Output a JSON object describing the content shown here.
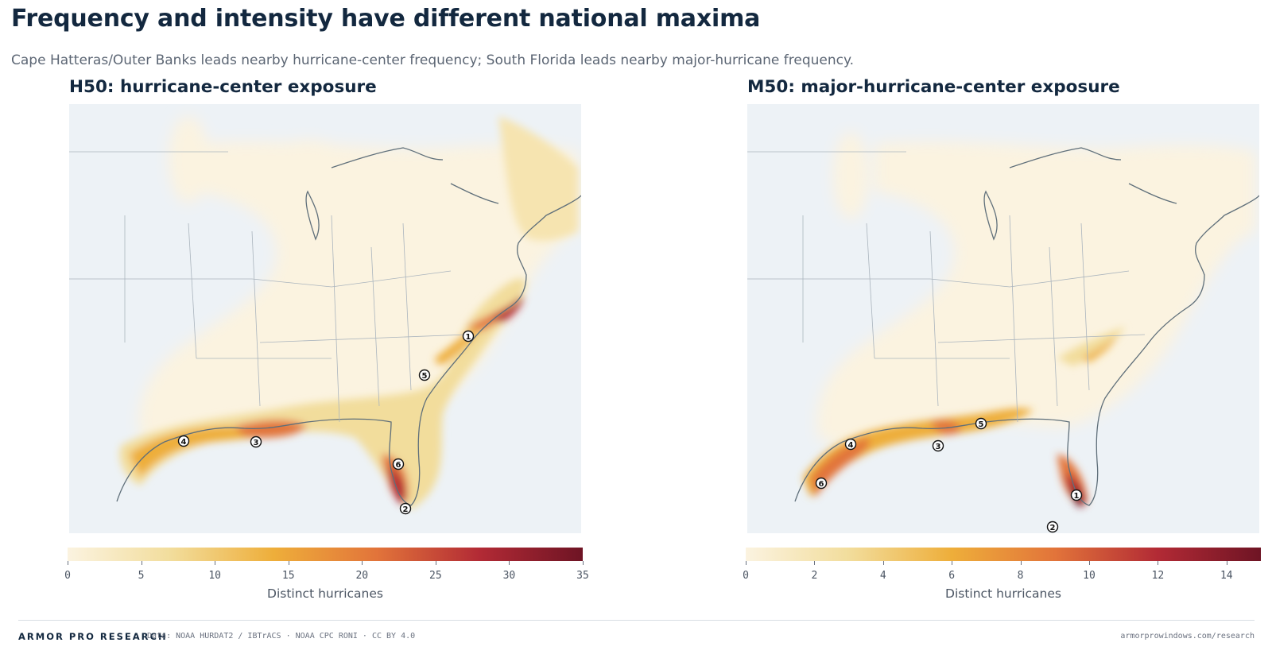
{
  "header": {
    "title": "Frequency and intensity have different national maxima",
    "subtitle": "Cape Hatteras/Outer Banks leads nearby hurricane-center frequency; South Florida leads nearby major-hurricane frequency."
  },
  "panels": [
    {
      "id": "h50",
      "title": "H50: hurricane-center exposure",
      "colorbar": {
        "label": "Distinct hurricanes",
        "ticks": [
          "0",
          "5",
          "10",
          "15",
          "20",
          "25",
          "30",
          "35"
        ],
        "min": 0,
        "max": 35
      },
      "ranks": [
        "1",
        "2",
        "3",
        "4",
        "5",
        "6"
      ]
    },
    {
      "id": "m50",
      "title": "M50: major-hurricane-center exposure",
      "colorbar": {
        "label": "Distinct hurricanes",
        "ticks": [
          "0",
          "2",
          "4",
          "6",
          "8",
          "10",
          "12",
          "14"
        ],
        "min": 0,
        "max": 15
      },
      "ranks": [
        "1",
        "2",
        "3",
        "4",
        "5",
        "6"
      ]
    }
  ],
  "colors": {
    "ocean": "#edf2f6",
    "land": "#edf2f6",
    "coast": "#5f6f7a",
    "borders": "#aab4bd",
    "ramp": [
      "#fbf3e0",
      "#f2dd9c",
      "#eeae3a",
      "#e2743a",
      "#b22a35",
      "#6e1424"
    ]
  },
  "footer": {
    "brand": "ARMOR PRO RESEARCH",
    "source": "Data: NOAA HURDAT2 / IBTrACS · NOAA CPC RONI · CC BY 4.0",
    "url": "armorprowindows.com/research"
  }
}
